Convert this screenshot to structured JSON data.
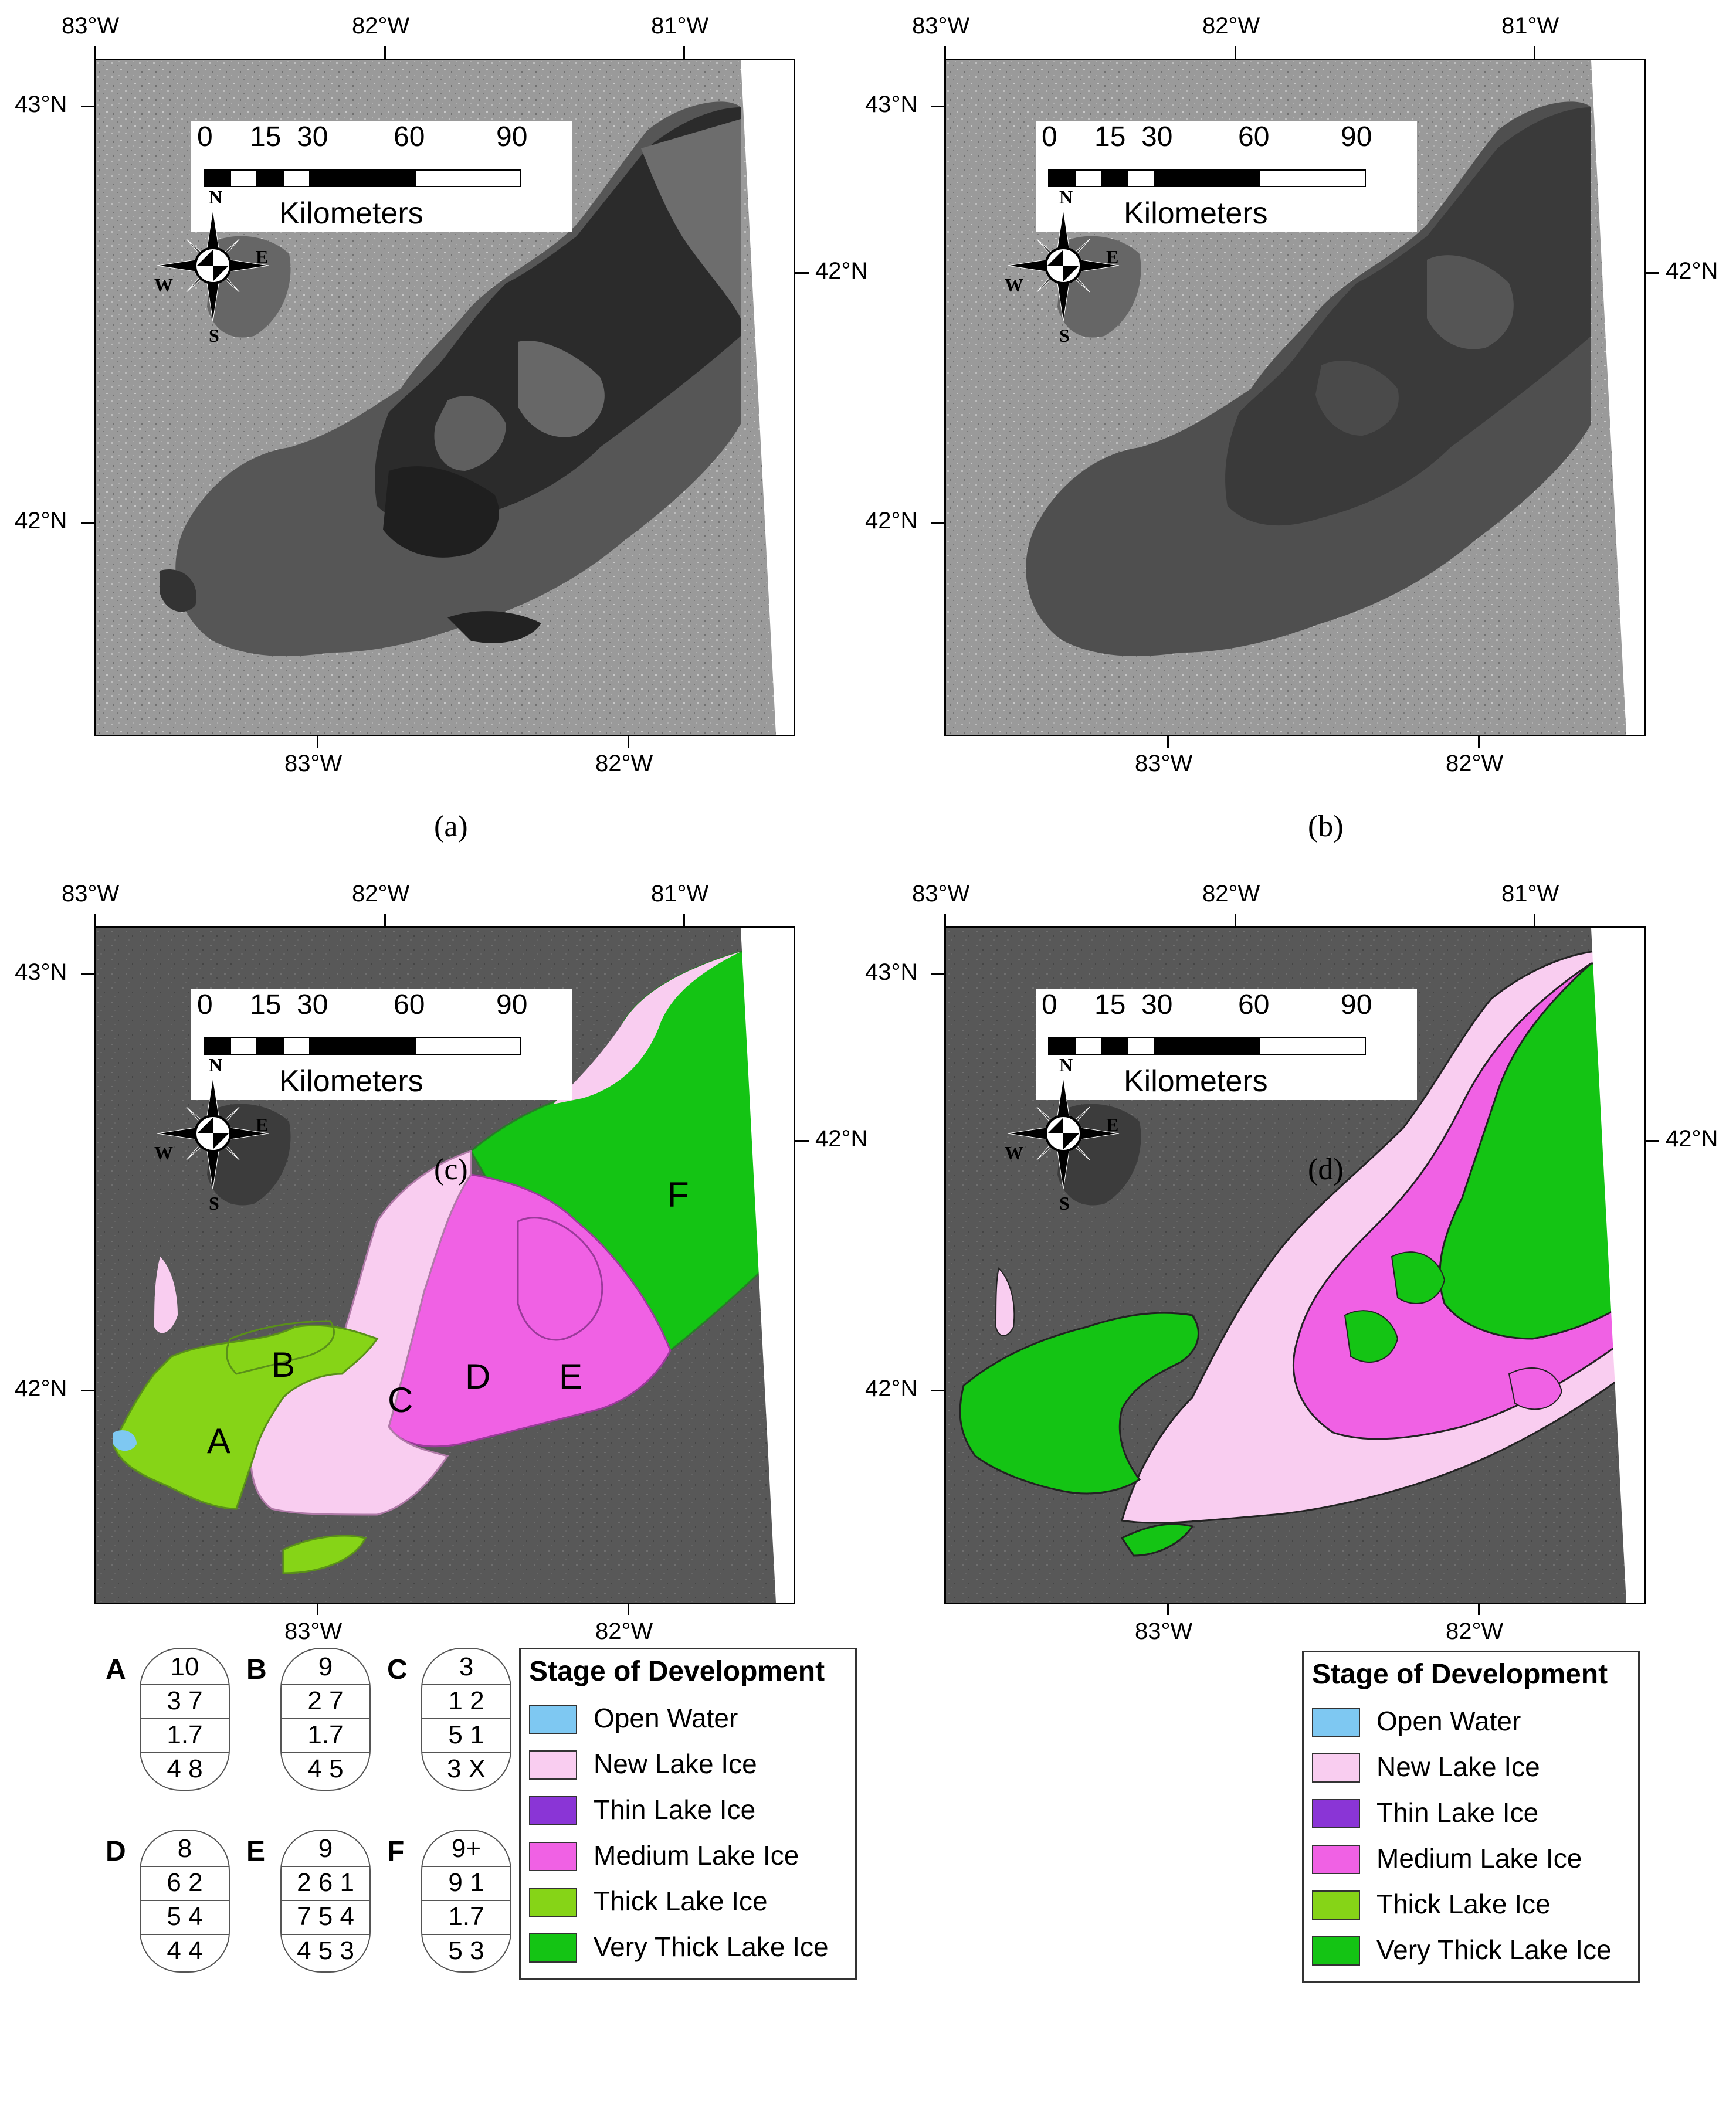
{
  "colors": {
    "open_water": "#7ec8f2",
    "new_lake_ice": "#f9cdf0",
    "thin_lake_ice": "#8a35d6",
    "medium_lake_ice": "#f061e4",
    "thick_lake_ice": "#86d417",
    "very_thick_lake_ice": "#14c414",
    "sar_water_dark": "#2a2a2a",
    "sar_land": "#9a9a9a"
  },
  "icons": {
    "compass": "north-arrow-compass-rose"
  },
  "axes": {
    "top_lon": [
      "83°W",
      "82°W",
      "81°W"
    ],
    "bottom_lon": [
      "83°W",
      "82°W"
    ],
    "left_lat": [
      "43°N",
      "42°N"
    ],
    "right_lat": [
      "42°N"
    ]
  },
  "scale_bar": {
    "ticks": [
      "0",
      "15",
      "30",
      "60",
      "90"
    ],
    "unit": "Kilometers"
  },
  "compass_letters": {
    "n": "N",
    "s": "S",
    "e": "E",
    "w": "W"
  },
  "panels": [
    {
      "label": "(a)"
    },
    {
      "label": "(b)"
    },
    {
      "label": "(c)"
    },
    {
      "label": "(d)"
    }
  ],
  "regions": [
    "A",
    "B",
    "C",
    "D",
    "E",
    "F"
  ],
  "egg_codes": [
    {
      "letter": "A",
      "rows": [
        "10",
        "3 7",
        "1.7",
        "4 8"
      ]
    },
    {
      "letter": "B",
      "rows": [
        "9",
        "2 7",
        "1.7",
        "4 5"
      ]
    },
    {
      "letter": "C",
      "rows": [
        "3",
        "1 2",
        "5 1",
        "3 X"
      ]
    },
    {
      "letter": "D",
      "rows": [
        "8",
        "6 2",
        "5 4",
        "4 4"
      ]
    },
    {
      "letter": "E",
      "rows": [
        "9",
        "2 6 1",
        "7 5 4",
        "4 5 3"
      ]
    },
    {
      "letter": "F",
      "rows": [
        "9+",
        "9 1",
        "1.7",
        "5 3"
      ]
    }
  ],
  "legend": {
    "title": "Stage of Development",
    "items": [
      {
        "label": "Open Water",
        "color": "#7ec8f2"
      },
      {
        "label": "New Lake Ice",
        "color": "#f9cdf0"
      },
      {
        "label": "Thin Lake Ice",
        "color": "#8a35d6"
      },
      {
        "label": "Medium Lake Ice",
        "color": "#f061e4"
      },
      {
        "label": "Thick Lake Ice",
        "color": "#86d417"
      },
      {
        "label": "Very Thick Lake Ice",
        "color": "#14c414"
      }
    ]
  }
}
